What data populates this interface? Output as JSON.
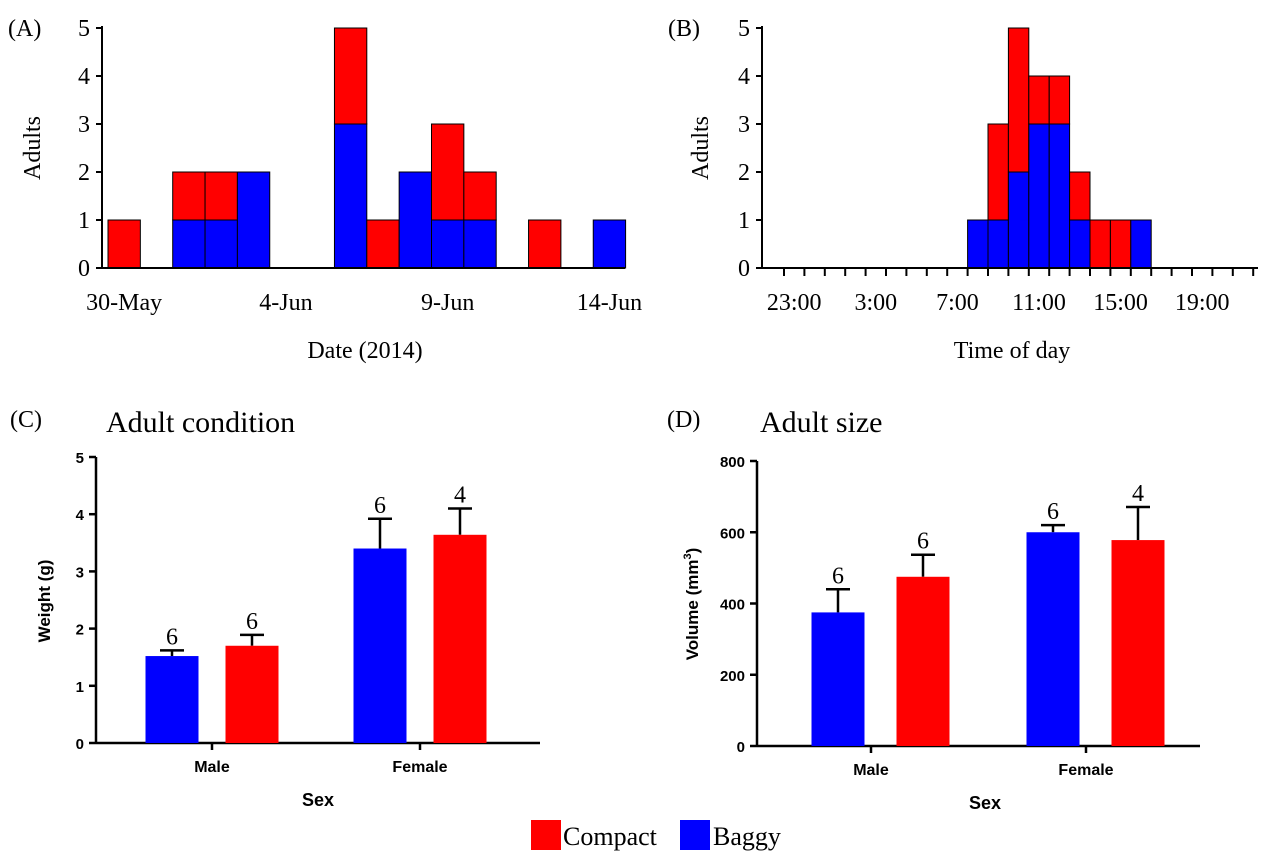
{
  "colors": {
    "compact": "#ff0000",
    "baggy": "#0000ff",
    "axis": "#000000"
  },
  "legend": {
    "items": [
      {
        "label": "Compact",
        "color": "#ff0000"
      },
      {
        "label": "Baggy",
        "color": "#0000ff"
      }
    ]
  },
  "chart_data": [
    {
      "panel": "(A)",
      "type": "bar",
      "stacked": true,
      "title": "",
      "xlabel": "Date (2014)",
      "ylabel": "Adults",
      "ylim": [
        0,
        5
      ],
      "yticks": [
        0,
        1,
        2,
        3,
        4,
        5
      ],
      "x_tick_labels": [
        "30-May",
        "4-Jun",
        "9-Jun",
        "14-Jun"
      ],
      "categories": [
        "30-May",
        "31-May",
        "1-Jun",
        "2-Jun",
        "3-Jun",
        "4-Jun",
        "5-Jun",
        "6-Jun",
        "7-Jun",
        "8-Jun",
        "9-Jun",
        "10-Jun",
        "11-Jun",
        "12-Jun",
        "13-Jun",
        "14-Jun"
      ],
      "series": [
        {
          "name": "Baggy",
          "color": "#0000ff",
          "values": [
            0,
            0,
            1,
            1,
            2,
            0,
            0,
            3,
            0,
            2,
            1,
            1,
            0,
            0,
            0,
            1
          ]
        },
        {
          "name": "Compact",
          "color": "#ff0000",
          "values": [
            1,
            0,
            1,
            1,
            0,
            0,
            0,
            2,
            1,
            0,
            2,
            1,
            0,
            1,
            0,
            0
          ]
        }
      ]
    },
    {
      "panel": "(B)",
      "type": "bar",
      "stacked": true,
      "title": "",
      "xlabel": "Time of day",
      "ylabel": "Adults",
      "ylim": [
        0,
        5
      ],
      "yticks": [
        0,
        1,
        2,
        3,
        4,
        5
      ],
      "x_tick_labels": [
        "23:00",
        "3:00",
        "7:00",
        "11:00",
        "15:00",
        "19:00"
      ],
      "categories": [
        "23:00",
        "0:00",
        "1:00",
        "2:00",
        "3:00",
        "4:00",
        "5:00",
        "6:00",
        "7:00",
        "8:00",
        "9:00",
        "10:00",
        "11:00",
        "12:00",
        "13:00",
        "14:00",
        "15:00",
        "16:00",
        "17:00",
        "18:00",
        "19:00",
        "20:00",
        "21:00",
        "22:00"
      ],
      "series": [
        {
          "name": "Baggy",
          "color": "#0000ff",
          "values": [
            0,
            0,
            0,
            0,
            0,
            0,
            0,
            0,
            0,
            1,
            1,
            2,
            3,
            3,
            1,
            0,
            0,
            1,
            0,
            0,
            0,
            0,
            0,
            0
          ]
        },
        {
          "name": "Compact",
          "color": "#ff0000",
          "values": [
            0,
            0,
            0,
            0,
            0,
            0,
            0,
            0,
            0,
            0,
            2,
            3,
            1,
            1,
            1,
            1,
            1,
            0,
            0,
            0,
            0,
            0,
            0,
            0
          ]
        }
      ]
    },
    {
      "panel": "(C)",
      "type": "bar",
      "title": "Adult condition",
      "xlabel": "Sex",
      "ylabel": "Weight (g)",
      "ylim": [
        0,
        5
      ],
      "yticks": [
        0,
        1,
        2,
        3,
        4,
        5
      ],
      "categories": [
        "Male",
        "Female"
      ],
      "series": [
        {
          "name": "Baggy",
          "color": "#0000ff",
          "values": [
            1.52,
            3.4
          ],
          "errors": [
            0.1,
            0.52
          ],
          "n": [
            6,
            6
          ]
        },
        {
          "name": "Compact",
          "color": "#ff0000",
          "values": [
            1.7,
            3.64
          ],
          "errors": [
            0.19,
            0.46
          ],
          "n": [
            6,
            4
          ]
        }
      ]
    },
    {
      "panel": "(D)",
      "type": "bar",
      "title": "Adult size",
      "xlabel": "Sex",
      "ylabel": "Volume (mm3)",
      "ylabel_main": "Volume (mm",
      "ylabel_sup": "3",
      "ylabel_end": ")",
      "ylim": [
        0,
        800
      ],
      "yticks": [
        0,
        200,
        400,
        600,
        800
      ],
      "categories": [
        "Male",
        "Female"
      ],
      "series": [
        {
          "name": "Baggy",
          "color": "#0000ff",
          "values": [
            375,
            600
          ],
          "errors": [
            65,
            20
          ],
          "n": [
            6,
            6
          ]
        },
        {
          "name": "Compact",
          "color": "#ff0000",
          "values": [
            475,
            578
          ],
          "errors": [
            62,
            93
          ],
          "n": [
            6,
            4
          ]
        }
      ]
    }
  ]
}
